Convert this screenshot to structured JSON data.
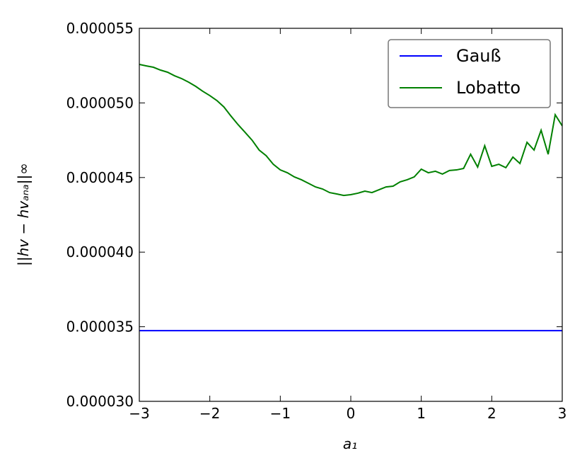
{
  "chart_data": {
    "type": "line",
    "xlabel": "a₁",
    "ylabel": "||hv − hvₐₙₐ||∞",
    "xlim": [
      -3,
      3
    ],
    "ylim": [
      3e-05,
      5.5e-05
    ],
    "xticks": [
      {
        "value": -3,
        "label": "−3"
      },
      {
        "value": -2,
        "label": "−2"
      },
      {
        "value": -1,
        "label": "−1"
      },
      0,
      1,
      2,
      3
    ],
    "yticks": [
      {
        "value": 3e-05,
        "label": "0.000030"
      },
      {
        "value": 3.5e-05,
        "label": "0.000035"
      },
      {
        "value": 4e-05,
        "label": "0.000040"
      },
      {
        "value": 4.5e-05,
        "label": "0.000045"
      },
      {
        "value": 5e-05,
        "label": "0.000050"
      },
      {
        "value": 5.5e-05,
        "label": "0.000055"
      }
    ],
    "legend": "upper right",
    "series": [
      {
        "name": "Gauß",
        "color": "#0000ff",
        "x": [
          -3,
          3
        ],
        "values": [
          3.474e-05,
          3.474e-05
        ]
      },
      {
        "name": "Lobatto",
        "color": "#008000",
        "x": [
          -3.0,
          -2.9,
          -2.8,
          -2.7,
          -2.6,
          -2.5,
          -2.4,
          -2.3,
          -2.2,
          -2.1,
          -2.0,
          -1.9,
          -1.8,
          -1.7,
          -1.6,
          -1.5,
          -1.4,
          -1.3,
          -1.2,
          -1.1,
          -1.0,
          -0.9,
          -0.8,
          -0.7,
          -0.6,
          -0.5,
          -0.4,
          -0.3,
          -0.2,
          -0.1,
          0.0,
          0.1,
          0.2,
          0.3,
          0.4,
          0.5,
          0.6,
          0.7,
          0.8,
          0.9,
          1.0,
          1.1,
          1.2,
          1.3,
          1.4,
          1.5,
          1.6,
          1.7,
          1.8,
          1.9,
          2.0,
          2.1,
          2.2,
          2.3,
          2.4,
          2.5,
          2.6,
          2.7,
          2.8,
          2.9,
          3.0
        ],
        "values": [
          5.258e-05,
          5.248e-05,
          5.239e-05,
          5.22e-05,
          5.206e-05,
          5.182e-05,
          5.163e-05,
          5.139e-05,
          5.111e-05,
          5.078e-05,
          5.049e-05,
          5.016e-05,
          4.973e-05,
          4.912e-05,
          4.855e-05,
          4.803e-05,
          4.75e-05,
          4.684e-05,
          4.646e-05,
          4.589e-05,
          4.551e-05,
          4.532e-05,
          4.504e-05,
          4.485e-05,
          4.461e-05,
          4.437e-05,
          4.423e-05,
          4.399e-05,
          4.39e-05,
          4.38e-05,
          4.385e-05,
          4.395e-05,
          4.409e-05,
          4.399e-05,
          4.418e-05,
          4.437e-05,
          4.442e-05,
          4.471e-05,
          4.485e-05,
          4.504e-05,
          4.556e-05,
          4.532e-05,
          4.542e-05,
          4.523e-05,
          4.547e-05,
          4.551e-05,
          4.561e-05,
          4.656e-05,
          4.57e-05,
          4.713e-05,
          4.575e-05,
          4.589e-05,
          4.566e-05,
          4.637e-05,
          4.594e-05,
          4.736e-05,
          4.684e-05,
          4.817e-05,
          4.656e-05,
          4.921e-05,
          4.846e-05
        ]
      }
    ]
  }
}
